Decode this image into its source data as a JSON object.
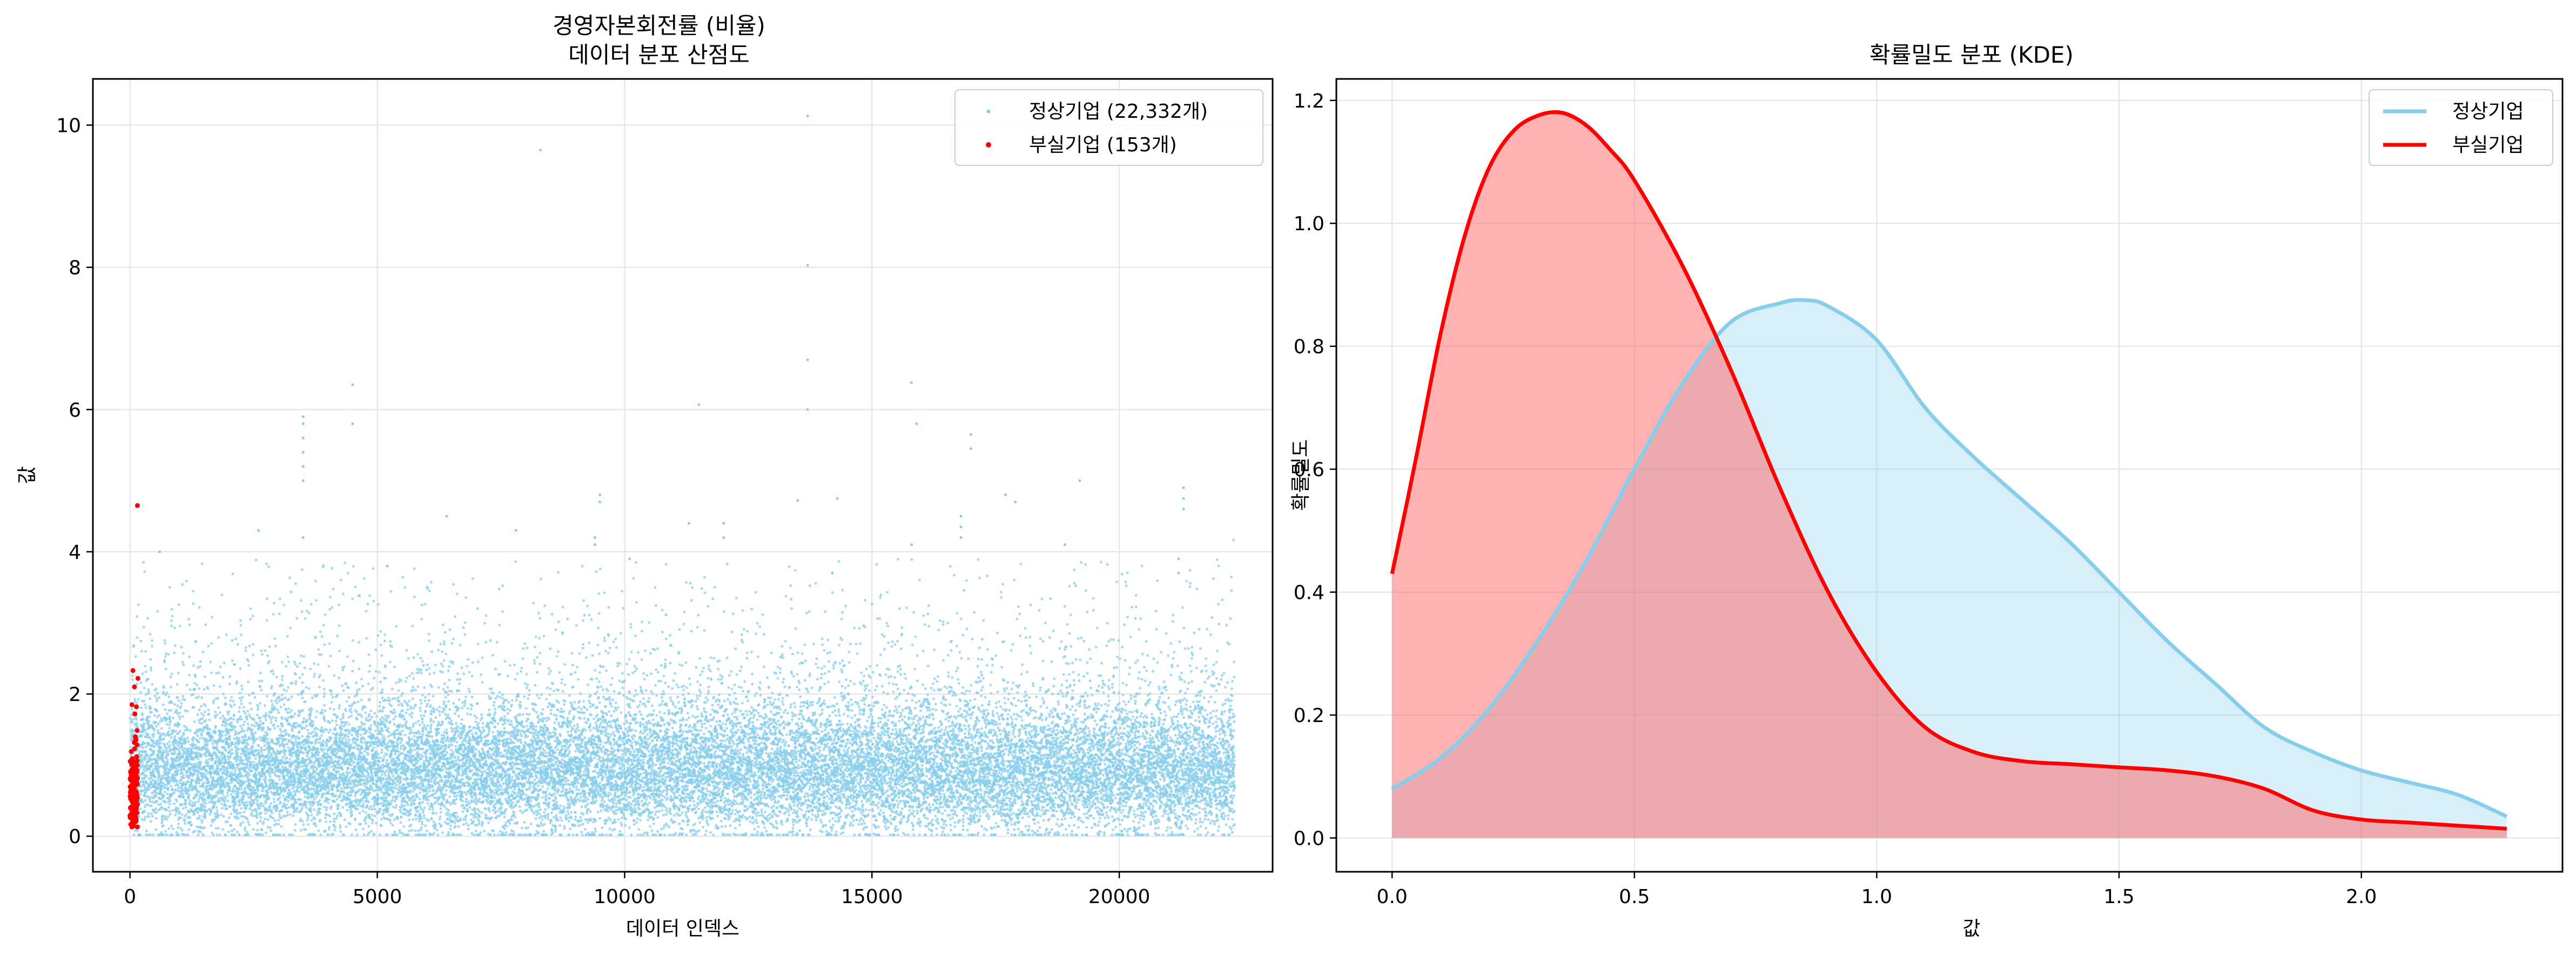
{
  "chart_data": [
    {
      "type": "scatter",
      "title": "경영자본회전률 (비율)",
      "subtitle": "데이터 분포 산점도",
      "xlabel": "데이터 인덱스",
      "ylabel": "값",
      "xlim": [
        -750,
        23100
      ],
      "ylim": [
        -0.5,
        10.65
      ],
      "xticks": [
        0,
        5000,
        10000,
        15000,
        20000
      ],
      "yticks": [
        0,
        2,
        4,
        6,
        8,
        10
      ],
      "grid": true,
      "legend_position": "top-right",
      "series": [
        {
          "name": "정상기업 (22,332개)",
          "color": "#87CEEB",
          "description": "n=22332, index range 0-22332, bulk values 0-2.2, mean about 0.9",
          "outliers": [
            [
              13700,
              10.13
            ],
            [
              8300,
              9.65
            ],
            [
              13700,
              8.03
            ],
            [
              13700,
              6.7
            ],
            [
              4500,
              6.35
            ],
            [
              13700,
              6.0
            ],
            [
              11500,
              6.07
            ],
            [
              15800,
              6.38
            ],
            [
              3500,
              5.9
            ],
            [
              3500,
              5.8
            ],
            [
              3500,
              5.6
            ],
            [
              3500,
              5.4
            ],
            [
              3500,
              5.2
            ],
            [
              3500,
              5.0
            ],
            [
              4500,
              5.8
            ],
            [
              15900,
              5.8
            ],
            [
              17000,
              5.65
            ],
            [
              17000,
              5.45
            ],
            [
              19200,
              5.0
            ],
            [
              17700,
              4.8
            ],
            [
              17900,
              4.7
            ],
            [
              21300,
              4.9
            ],
            [
              21300,
              4.75
            ],
            [
              21300,
              4.6
            ],
            [
              9500,
              4.8
            ],
            [
              9500,
              4.7
            ],
            [
              14300,
              4.75
            ],
            [
              13500,
              4.72
            ],
            [
              16800,
              4.5
            ],
            [
              16800,
              4.35
            ],
            [
              16800,
              4.2
            ],
            [
              11300,
              4.4
            ],
            [
              12000,
              4.4
            ],
            [
              12000,
              4.2
            ],
            [
              6400,
              4.5
            ],
            [
              7800,
              4.3
            ],
            [
              2600,
              4.3
            ],
            [
              3500,
              4.2
            ],
            [
              9400,
              4.2
            ],
            [
              9400,
              4.1
            ],
            [
              15800,
              4.1
            ],
            [
              600,
              4.0
            ],
            [
              18900,
              4.1
            ],
            [
              21200,
              3.9
            ],
            [
              21200,
              3.7
            ],
            [
              14200,
              3.7
            ],
            [
              10100,
              3.9
            ],
            [
              5200,
              3.8
            ]
          ]
        },
        {
          "name": "부실기업 (153개)",
          "color": "#FF0000",
          "description": "n=153, index range 0-153, values 0.05-2.35",
          "outliers": [
            [
              150,
              4.65
            ],
            [
              60,
              2.33
            ],
            [
              160,
              2.22
            ],
            [
              90,
              2.1
            ],
            [
              40,
              1.85
            ],
            [
              130,
              1.82
            ],
            [
              100,
              1.72
            ]
          ]
        }
      ]
    },
    {
      "type": "area",
      "title": "확률밀도 분포 (KDE)",
      "xlabel": "값",
      "ylabel": "확률밀도",
      "xlim": [
        -0.115,
        2.415
      ],
      "ylim": [
        -0.055,
        1.235
      ],
      "xticks": [
        0.0,
        0.5,
        1.0,
        1.5,
        2.0
      ],
      "yticks": [
        0.0,
        0.2,
        0.4,
        0.6,
        0.8,
        1.0,
        1.2
      ],
      "grid": true,
      "legend_position": "top-right",
      "series": [
        {
          "name": "정상기업",
          "color": "#87CEEB",
          "fill": "#87CEEB",
          "x": [
            0.0,
            0.1,
            0.2,
            0.3,
            0.4,
            0.5,
            0.6,
            0.7,
            0.8,
            0.85,
            0.9,
            1.0,
            1.1,
            1.2,
            1.3,
            1.4,
            1.5,
            1.6,
            1.7,
            1.8,
            1.9,
            2.0,
            2.1,
            2.2,
            2.3
          ],
          "values": [
            0.08,
            0.13,
            0.21,
            0.32,
            0.45,
            0.6,
            0.74,
            0.84,
            0.87,
            0.875,
            0.865,
            0.81,
            0.7,
            0.62,
            0.55,
            0.48,
            0.4,
            0.32,
            0.25,
            0.18,
            0.14,
            0.11,
            0.09,
            0.07,
            0.035
          ]
        },
        {
          "name": "부실기업",
          "color": "#FF0000",
          "fill": "#FF6666",
          "x": [
            0.0,
            0.05,
            0.1,
            0.15,
            0.2,
            0.25,
            0.3,
            0.35,
            0.4,
            0.45,
            0.5,
            0.6,
            0.7,
            0.8,
            0.9,
            1.0,
            1.1,
            1.2,
            1.3,
            1.4,
            1.5,
            1.6,
            1.7,
            1.8,
            1.9,
            2.0,
            2.1,
            2.2,
            2.3
          ],
          "values": [
            0.43,
            0.62,
            0.82,
            0.98,
            1.09,
            1.15,
            1.175,
            1.18,
            1.16,
            1.12,
            1.07,
            0.93,
            0.76,
            0.57,
            0.4,
            0.27,
            0.18,
            0.14,
            0.125,
            0.12,
            0.115,
            0.11,
            0.1,
            0.08,
            0.045,
            0.03,
            0.025,
            0.02,
            0.015
          ]
        }
      ]
    }
  ]
}
